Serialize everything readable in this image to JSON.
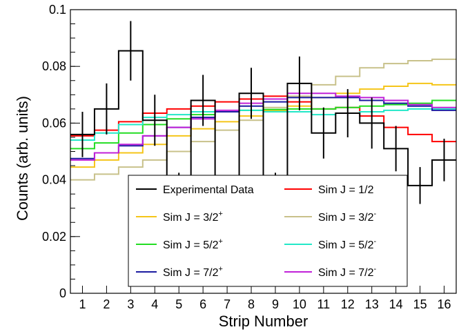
{
  "chart_data": {
    "type": "line",
    "style": "step-histogram",
    "xlabel": "Strip Number",
    "ylabel": "Counts (arb. units)",
    "xlim": [
      0.5,
      16.5
    ],
    "ylim": [
      0,
      0.1
    ],
    "x_ticks": [
      "1",
      "2",
      "3",
      "4",
      "5",
      "6",
      "7",
      "8",
      "9",
      "10",
      "11",
      "12",
      "13",
      "14",
      "15",
      "16"
    ],
    "y_ticks": [
      "0",
      "0.02",
      "0.04",
      "0.06",
      "0.08",
      "0.1"
    ],
    "grid": false,
    "legend_position": "bottom-center inside plot",
    "strips": [
      1,
      2,
      3,
      4,
      5,
      6,
      7,
      8,
      9,
      10,
      11,
      12,
      13,
      14,
      15,
      16
    ],
    "experimental": {
      "name": "Experimental Data",
      "color": "#000000",
      "values": [
        0.056,
        0.065,
        0.0855,
        0.061,
        0.0355,
        0.068,
        0.0315,
        0.0705,
        0.0355,
        0.074,
        0.0565,
        0.0635,
        0.06,
        0.051,
        0.038,
        0.047
      ],
      "errors": [
        0.008,
        0.009,
        0.0105,
        0.009,
        0.007,
        0.009,
        0.007,
        0.009,
        0.007,
        0.0095,
        0.009,
        0.0085,
        0.009,
        0.008,
        0.0065,
        0.0075
      ]
    },
    "series": [
      {
        "name": "Sim J = 1/2",
        "label_base": "Sim J = 1/2",
        "label_sup": "",
        "color": "#ff0000",
        "values": [
          0.0555,
          0.0575,
          0.0605,
          0.0635,
          0.065,
          0.066,
          0.0675,
          0.0685,
          0.0695,
          0.0675,
          0.065,
          0.0655,
          0.0625,
          0.0585,
          0.056,
          0.0535
        ]
      },
      {
        "name": "Sim J = 3/2+",
        "label_base": "Sim J = 3/2",
        "label_sup": "+",
        "color": "#f5c518",
        "values": [
          0.0445,
          0.047,
          0.0495,
          0.0525,
          0.0555,
          0.058,
          0.0605,
          0.0625,
          0.0645,
          0.066,
          0.069,
          0.0705,
          0.072,
          0.073,
          0.074,
          0.0735
        ]
      },
      {
        "name": "Sim J = 3/2-",
        "label_base": "Sim J = 3/2",
        "label_sup": "-",
        "color": "#c8c18a",
        "values": [
          0.04,
          0.042,
          0.0445,
          0.047,
          0.05,
          0.0535,
          0.0575,
          0.061,
          0.0655,
          0.0695,
          0.0735,
          0.0765,
          0.0795,
          0.081,
          0.082,
          0.0825
        ]
      },
      {
        "name": "Sim J = 5/2+",
        "label_base": "Sim J = 5/2",
        "label_sup": "+",
        "color": "#22dd22",
        "values": [
          0.051,
          0.053,
          0.0565,
          0.0595,
          0.0615,
          0.063,
          0.064,
          0.0645,
          0.0648,
          0.065,
          0.065,
          0.0655,
          0.066,
          0.0665,
          0.067,
          0.068
        ]
      },
      {
        "name": "Sim J = 5/2-",
        "label_base": "Sim J = 5/2",
        "label_sup": "-",
        "color": "#22e8c8",
        "values": [
          0.054,
          0.0565,
          0.0595,
          0.062,
          0.063,
          0.064,
          0.064,
          0.0645,
          0.064,
          0.064,
          0.063,
          0.0635,
          0.064,
          0.0645,
          0.065,
          0.065
        ]
      },
      {
        "name": "Sim J = 7/2+",
        "label_base": "Sim J = 7/2",
        "label_sup": "+",
        "color": "#1a1aa0",
        "values": [
          0.0475,
          0.0495,
          0.052,
          0.0555,
          0.0585,
          0.062,
          0.064,
          0.066,
          0.0675,
          0.069,
          0.069,
          0.069,
          0.068,
          0.067,
          0.066,
          0.0645
        ]
      },
      {
        "name": "Sim J = 7/2-",
        "label_base": "Sim J = 7/2",
        "label_sup": "-",
        "color": "#c020d8",
        "values": [
          0.047,
          0.0495,
          0.0525,
          0.0555,
          0.0585,
          0.0615,
          0.0645,
          0.067,
          0.0685,
          0.0705,
          0.0705,
          0.0695,
          0.069,
          0.068,
          0.0665,
          0.0655
        ]
      }
    ],
    "legend_entries": [
      {
        "key": "experimental",
        "label_base": "Experimental Data",
        "label_sup": ""
      },
      {
        "key": 0
      },
      {
        "key": 1
      },
      {
        "key": 2
      },
      {
        "key": 3
      },
      {
        "key": 4
      },
      {
        "key": 5
      },
      {
        "key": 6
      }
    ]
  }
}
